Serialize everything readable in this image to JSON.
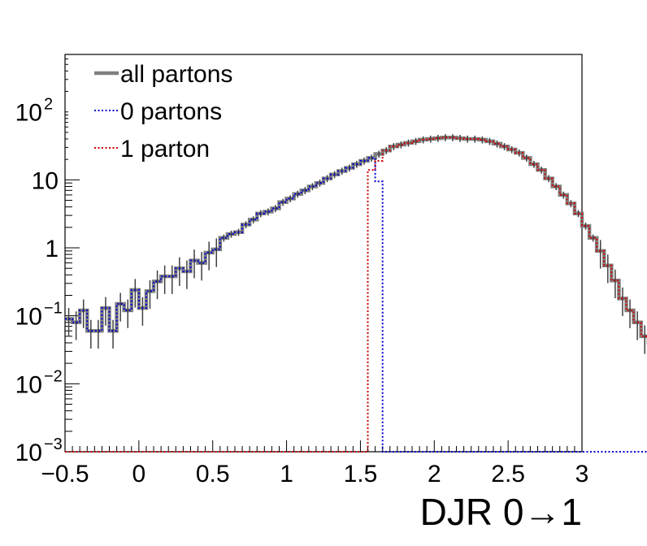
{
  "chart_data": {
    "type": "line",
    "step": true,
    "log_y": true,
    "xlabel": "DJR 0→1",
    "ylabel": "",
    "title": "",
    "xlim": [
      -0.5,
      3.0
    ],
    "ylim": [
      0.001,
      700
    ],
    "xticks": [
      "−0.5",
      "0",
      "0.5",
      "1",
      "1.5",
      "2",
      "2.5",
      "3"
    ],
    "xtick_values": [
      -0.5,
      0,
      0.5,
      1,
      1.5,
      2,
      2.5,
      3
    ],
    "yticks": [
      {
        "value": 0.001,
        "base": "10",
        "exp": "−3"
      },
      {
        "value": 0.01,
        "base": "10",
        "exp": "−2"
      },
      {
        "value": 0.1,
        "base": "10",
        "exp": "−1"
      },
      {
        "value": 1,
        "base": "1",
        "exp": ""
      },
      {
        "value": 10,
        "base": "10",
        "exp": ""
      },
      {
        "value": 100,
        "base": "10",
        "exp": "2"
      }
    ],
    "legend": {
      "placement": "top-left",
      "entries": [
        {
          "label": "all partons",
          "color": "#808080",
          "style": "solid"
        },
        {
          "label": "0 partons",
          "color": "#0000cc",
          "style": "dotted"
        },
        {
          "label": "1 parton",
          "color": "#cc0000",
          "style": "dotted"
        }
      ]
    },
    "bin_edges_start": -0.5,
    "bin_width": 0.05,
    "series": [
      {
        "name": "all partons",
        "color": "#808080",
        "values": [
          0.09,
          0.08,
          0.12,
          0.06,
          0.06,
          0.13,
          0.06,
          0.15,
          0.12,
          0.24,
          0.13,
          0.23,
          0.32,
          0.38,
          0.38,
          0.5,
          0.45,
          0.65,
          0.6,
          0.85,
          0.95,
          1.4,
          1.6,
          1.7,
          2.2,
          2.6,
          3.2,
          3.4,
          3.8,
          4.7,
          5.3,
          6.2,
          7,
          8,
          9,
          10.5,
          12,
          13.5,
          15,
          17,
          19,
          21,
          24,
          27,
          31,
          33,
          35,
          37,
          39,
          40,
          41,
          42,
          42,
          41,
          40,
          40,
          39,
          37,
          34,
          31,
          28,
          25,
          21,
          17,
          14,
          10.5,
          8,
          6,
          4.5,
          3.2,
          2.1,
          1.4,
          0.9,
          0.55,
          0.33,
          0.18,
          0.12,
          0.08,
          0.05,
          0.04
        ]
      },
      {
        "name": "0 partons",
        "color": "#0000cc",
        "values": [
          0.09,
          0.08,
          0.12,
          0.06,
          0.06,
          0.13,
          0.06,
          0.15,
          0.12,
          0.24,
          0.13,
          0.23,
          0.32,
          0.38,
          0.38,
          0.5,
          0.45,
          0.65,
          0.6,
          0.85,
          0.95,
          1.4,
          1.6,
          1.7,
          2.2,
          2.6,
          3.2,
          3.4,
          3.8,
          4.7,
          5.3,
          6.2,
          7,
          8,
          9,
          10.5,
          12,
          13.5,
          15,
          17,
          19,
          21,
          9.5,
          0,
          0,
          0,
          0,
          0,
          0,
          0,
          0,
          0,
          0,
          0,
          0,
          0,
          0,
          0,
          0,
          0,
          0,
          0,
          0,
          0,
          0,
          0,
          0,
          0,
          0,
          0,
          0,
          0,
          0,
          0,
          0,
          0,
          0,
          0,
          0,
          0
        ]
      },
      {
        "name": "1 parton",
        "color": "#cc0000",
        "values": [
          0,
          0,
          0,
          0,
          0,
          0,
          0,
          0,
          0,
          0,
          0,
          0,
          0,
          0,
          0,
          0,
          0,
          0,
          0,
          0,
          0,
          0,
          0,
          0,
          0,
          0,
          0,
          0,
          0,
          0,
          0,
          0,
          0,
          0,
          0,
          0,
          0,
          0,
          0,
          0,
          0,
          14,
          19,
          27,
          31,
          33,
          35,
          37,
          39,
          40,
          41,
          42,
          42,
          41,
          40,
          40,
          39,
          37,
          34,
          31,
          28,
          25,
          21,
          17,
          14,
          10.5,
          8,
          6,
          4.5,
          3.2,
          2.1,
          1.4,
          0.9,
          0.55,
          0.33,
          0.18,
          0.12,
          0.08,
          0.05,
          0.04
        ]
      }
    ]
  }
}
